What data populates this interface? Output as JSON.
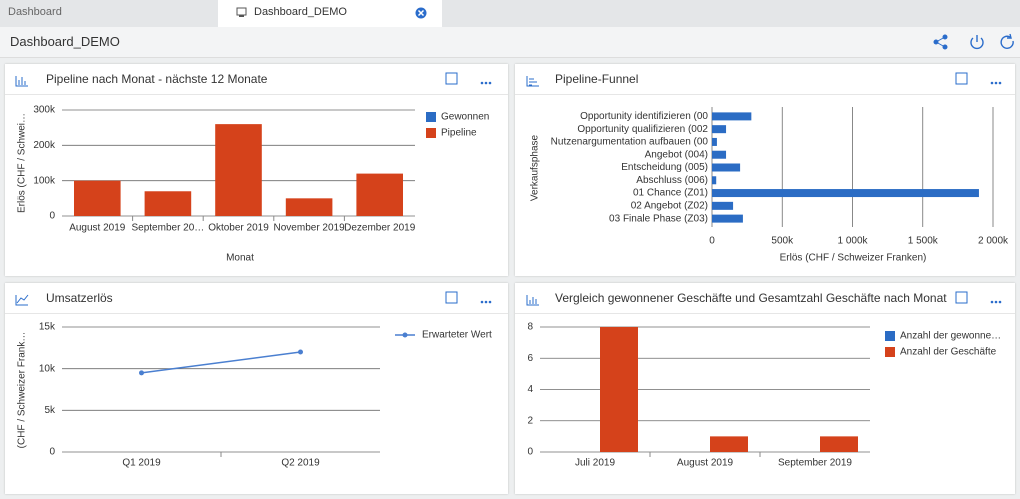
{
  "tabs": [
    "Dashboard",
    "Dashboard_DEMO"
  ],
  "header": {
    "title": "Dashboard_DEMO"
  },
  "chart_data": [
    {
      "type": "bar",
      "title": "Pipeline nach Monat - nächste 12 Monate",
      "x_label": "Monat",
      "y_label": "Erlös (CHF / Schwei…",
      "categories": [
        "August 2019",
        "September 20…",
        "Oktober 2019",
        "November 2019",
        "Dezember 2019"
      ],
      "series": [
        {
          "name": "Gewonnen",
          "color": "#2b6cc4",
          "values": [
            0,
            0,
            0,
            0,
            0
          ]
        },
        {
          "name": "Pipeline",
          "color": "#d5421b",
          "values": [
            100000,
            70000,
            260000,
            50000,
            120000
          ]
        }
      ],
      "stacked": true,
      "ylim": [
        0,
        300000
      ],
      "yticks": [
        0,
        {
          "value": 100000,
          "label": "100k"
        },
        {
          "value": 200000,
          "label": "200k"
        },
        {
          "value": 300000,
          "label": "300k"
        }
      ],
      "grid": true,
      "legend": "right"
    },
    {
      "type": "hbar",
      "title": "Pipeline-Funnel",
      "x_label": "Erlös (CHF / Schweizer Franken)",
      "y_label": "Verkaufsphase",
      "categories": [
        "Opportunity identifizieren (00",
        "Opportunity qualifizieren (002",
        "Nutzenargumentation aufbauen (00",
        "Angebot (004)",
        "Entscheidung (005)",
        "Abschluss (006)",
        "01 Chance (Z01)",
        "02 Angebot (Z02)",
        "03 Finale Phase (Z03)"
      ],
      "values": [
        280000,
        100000,
        35000,
        100000,
        200000,
        30000,
        1900000,
        150000,
        220000
      ],
      "color": "#2b6cc4",
      "xlim": [
        0,
        2000000
      ],
      "xticks": [
        0,
        {
          "value": 500000,
          "label": "500k"
        },
        {
          "value": 1000000,
          "label": "1 000k"
        },
        {
          "value": 1500000,
          "label": "1 500k"
        },
        {
          "value": 2000000,
          "label": "2 000k"
        }
      ],
      "grid": true
    },
    {
      "type": "line",
      "title": "Umsatzerlös",
      "y_label": "(CHF / Schweizer Frank…",
      "categories": [
        "Q1 2019",
        "Q2 2019"
      ],
      "series": [
        {
          "name": "Erwarteter Wert",
          "color": "#4a7fd0",
          "values": [
            9500,
            12000
          ]
        }
      ],
      "ylim": [
        0,
        15000
      ],
      "yticks": [
        0,
        {
          "value": 5000,
          "label": "5k"
        },
        {
          "value": 10000,
          "label": "10k"
        },
        {
          "value": 15000,
          "label": "15k"
        }
      ],
      "grid": true,
      "legend": "right"
    },
    {
      "type": "bar",
      "title": "Vergleich gewonnener Geschäfte und Gesamtzahl Geschäfte nach Monat",
      "categories": [
        "Juli 2019",
        "August 2019",
        "September 2019"
      ],
      "series": [
        {
          "name": "Anzahl der gewonne…",
          "color": "#2b6cc4",
          "values": [
            0,
            0,
            0
          ]
        },
        {
          "name": "Anzahl der Geschäfte",
          "color": "#d5421b",
          "values": [
            8,
            1,
            1
          ]
        }
      ],
      "ylim": [
        0,
        8
      ],
      "yticks": [
        0,
        2,
        4,
        6,
        8
      ],
      "grid": true,
      "legend": "right"
    }
  ]
}
